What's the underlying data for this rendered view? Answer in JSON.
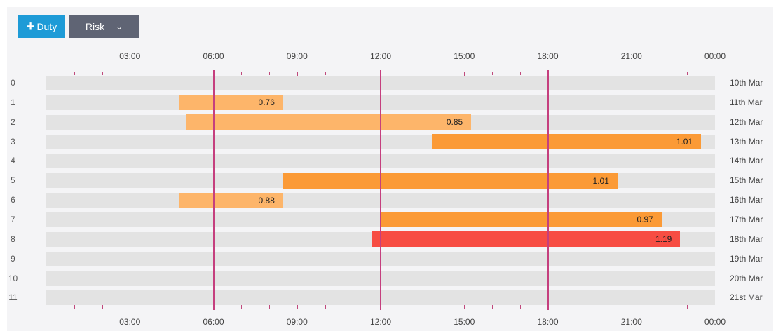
{
  "toolbar": {
    "duty_label": "Duty",
    "duty_icon": "plus-icon",
    "risk_label": "Risk",
    "risk_icon": "chevron-down-icon"
  },
  "axis": {
    "labels": [
      "03:00",
      "06:00",
      "09:00",
      "12:00",
      "15:00",
      "18:00",
      "21:00",
      "00:00"
    ]
  },
  "rows": [
    {
      "index": "0",
      "date": "10th Mar"
    },
    {
      "index": "1",
      "date": "11th Mar"
    },
    {
      "index": "2",
      "date": "12th Mar"
    },
    {
      "index": "3",
      "date": "13th Mar"
    },
    {
      "index": "4",
      "date": "14th Mar"
    },
    {
      "index": "5",
      "date": "15th Mar"
    },
    {
      "index": "6",
      "date": "16th Mar"
    },
    {
      "index": "7",
      "date": "17th Mar"
    },
    {
      "index": "8",
      "date": "18th Mar"
    },
    {
      "index": "9",
      "date": "19th Mar"
    },
    {
      "index": "10",
      "date": "20th Mar"
    },
    {
      "index": "11",
      "date": "21st Mar"
    }
  ],
  "duties": [
    {
      "row": 1,
      "start": "04:45",
      "end": "08:30",
      "value": "0.76",
      "color": "#fdb56a"
    },
    {
      "row": 2,
      "start": "05:00",
      "end": "15:15",
      "value": "0.85",
      "color": "#fdb56a"
    },
    {
      "row": 3,
      "start": "13:50",
      "end": "23:30",
      "value": "1.01",
      "color": "#fb9a36"
    },
    {
      "row": 5,
      "start": "08:30",
      "end": "20:30",
      "value": "1.01",
      "color": "#fb9a36"
    },
    {
      "row": 6,
      "start": "04:45",
      "end": "08:30",
      "value": "0.88",
      "color": "#fdb56a"
    },
    {
      "row": 7,
      "start": "12:00",
      "end": "22:05",
      "value": "0.97",
      "color": "#fb9a36"
    },
    {
      "row": 8,
      "start": "11:40",
      "end": "22:45",
      "value": "1.19",
      "color": "#f74d43"
    }
  ],
  "colors": {
    "duty_button": "#1e9bd7",
    "risk_button": "#5f6474",
    "gridline": "#c53f7e",
    "row_background": "#e3e3e3"
  }
}
